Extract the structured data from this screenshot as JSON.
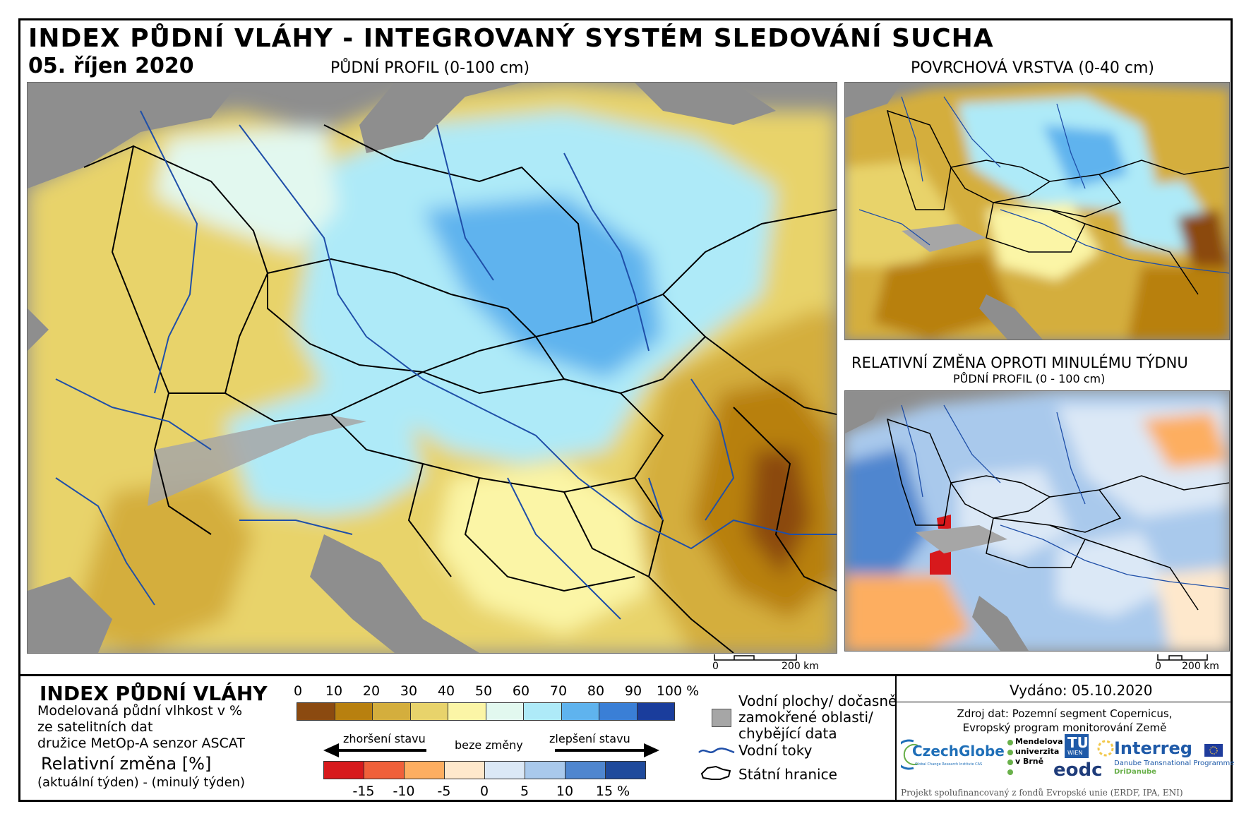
{
  "header": {
    "title": "INDEX PŮDNÍ VLÁHY - INTEGROVANÝ SYSTÉM SLEDOVÁNÍ SUCHA",
    "date": "05. říjen 2020"
  },
  "maps": {
    "main_title": "PŮDNÍ PROFIL (0-100 cm)",
    "surface_title": "POVRCHOVÁ VRSTVA (0-40 cm)",
    "change_title": "RELATIVNÍ ZMĚNA OPROTI MINULÉMU TÝDNU",
    "change_subtitle": "PŮDNÍ PROFIL (0 - 100 cm)",
    "scale_zero": "0",
    "scale_label": "200 km"
  },
  "legend": {
    "heading": "INDEX PŮDNÍ VLÁHY",
    "desc_line1": "Modelovaná půdní vlhkost v %",
    "desc_line2": "ze satelitních dat",
    "desc_line3": "družice MetOp-A senzor ASCAT",
    "rel_heading": "Relativní změna [%]",
    "rel_desc": "(aktuální týden) - (minulý týden)",
    "moisture_ticks": [
      "0",
      "10",
      "20",
      "30",
      "40",
      "50",
      "60",
      "70",
      "80",
      "90",
      "100 %"
    ],
    "moisture_colors": [
      "#8b4a10",
      "#b8800f",
      "#d4ae3d",
      "#e8d36b",
      "#fbf5a6",
      "#e2f8ef",
      "#aeeaf8",
      "#5fb3ee",
      "#3a7fd6",
      "#1a3d9c"
    ],
    "arrow_worse": "zhoršení stavu",
    "arrow_none": "beze změny",
    "arrow_better": "zlepšení stavu",
    "change_ticks": [
      "-15",
      "-10",
      "-5",
      "0",
      "5",
      "10",
      "15 %"
    ],
    "change_colors": [
      "#d7191c",
      "#f0603a",
      "#fdae61",
      "#fee8cc",
      "#dbe8f6",
      "#a9c9ec",
      "#4f86cf",
      "#1f4a9c"
    ],
    "key_water_line1": "Vodní plochy/ dočasně",
    "key_water_line2": "zamokřené oblasti/",
    "key_water_line3": "chybějící data",
    "key_rivers": "Vodní toky",
    "key_borders": "Státní hranice",
    "colors": {
      "gray": "#a6a6a6",
      "river": "#1f4fa8"
    }
  },
  "info": {
    "issued": "Vydáno: 05.10.2020",
    "source_line1": "Zdroj dat: Pozemní segment Copernicus,",
    "source_line2": "Evropský program monitorování Země",
    "logos": {
      "czechglobe": "CzechGlobe",
      "czechglobe_sub": "Global Change Research Institute CAS",
      "mendel_line1": "Mendelova",
      "mendel_line2": "univerzita",
      "mendel_line3": "v Brně",
      "tu": "TU",
      "tu_sub": "WIEN",
      "eodc": "eodc",
      "interreg": "Interreg",
      "interreg_sub1": "Danube Transnational Programme",
      "interreg_sub2": "DriDanube"
    },
    "project": "Projekt spolufinancovaný z fondů Evropské unie (ERDF, IPA, ENI)"
  }
}
